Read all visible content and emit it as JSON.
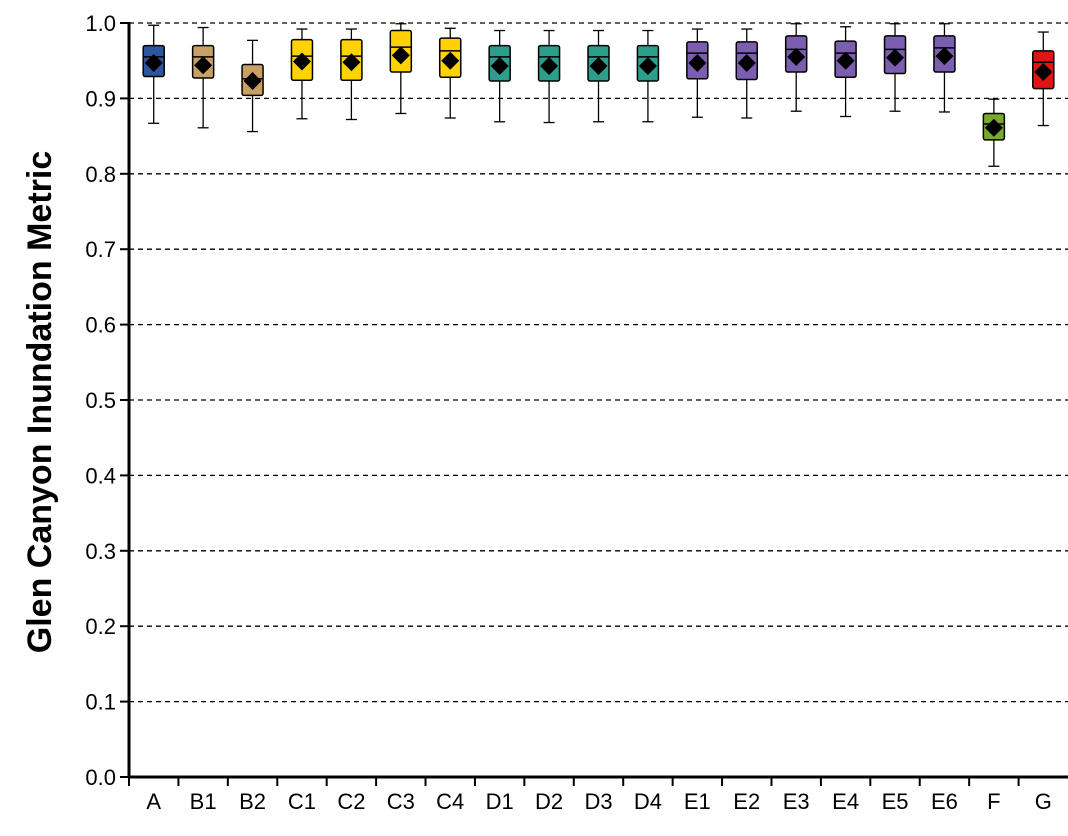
{
  "chart_data": {
    "type": "box",
    "title": "",
    "xlabel": "",
    "ylabel": "Glen Canyon Inundation Metric",
    "ylim": [
      0,
      1
    ],
    "yticks": [
      "0.0",
      "0.1",
      "0.2",
      "0.3",
      "0.4",
      "0.5",
      "0.6",
      "0.7",
      "0.8",
      "0.9",
      "1.0"
    ],
    "grid": "horizontal dashed",
    "categories": [
      "A",
      "B1",
      "B2",
      "C1",
      "C2",
      "C3",
      "C4",
      "D1",
      "D2",
      "D3",
      "D4",
      "E1",
      "E2",
      "E3",
      "E4",
      "E5",
      "E6",
      "F",
      "G"
    ],
    "colors": [
      "#2E55A0",
      "#C8A064",
      "#C8A064",
      "#FFD200",
      "#FFD200",
      "#FFD200",
      "#FFD200",
      "#2E9E8C",
      "#2E9E8C",
      "#2E9E8C",
      "#2E9E8C",
      "#7B5EAF",
      "#7B5EAF",
      "#7B5EAF",
      "#7B5EAF",
      "#7B5EAF",
      "#7B5EAF",
      "#78A82E",
      "#E01414"
    ],
    "boxes": [
      {
        "min": 0.867,
        "q1": 0.929,
        "median": 0.955,
        "q3": 0.97,
        "max": 0.997,
        "mean": 0.947
      },
      {
        "min": 0.861,
        "q1": 0.927,
        "median": 0.955,
        "q3": 0.97,
        "max": 0.994,
        "mean": 0.944
      },
      {
        "min": 0.856,
        "q1": 0.904,
        "median": 0.926,
        "q3": 0.945,
        "max": 0.977,
        "mean": 0.923
      },
      {
        "min": 0.873,
        "q1": 0.924,
        "median": 0.956,
        "q3": 0.978,
        "max": 0.992,
        "mean": 0.949
      },
      {
        "min": 0.872,
        "q1": 0.924,
        "median": 0.956,
        "q3": 0.978,
        "max": 0.992,
        "mean": 0.948
      },
      {
        "min": 0.88,
        "q1": 0.935,
        "median": 0.968,
        "q3": 0.99,
        "max": 0.999,
        "mean": 0.957
      },
      {
        "min": 0.874,
        "q1": 0.928,
        "median": 0.963,
        "q3": 0.98,
        "max": 0.993,
        "mean": 0.95
      },
      {
        "min": 0.869,
        "q1": 0.923,
        "median": 0.955,
        "q3": 0.97,
        "max": 0.99,
        "mean": 0.943
      },
      {
        "min": 0.868,
        "q1": 0.923,
        "median": 0.955,
        "q3": 0.97,
        "max": 0.99,
        "mean": 0.943
      },
      {
        "min": 0.869,
        "q1": 0.923,
        "median": 0.955,
        "q3": 0.97,
        "max": 0.99,
        "mean": 0.943
      },
      {
        "min": 0.869,
        "q1": 0.923,
        "median": 0.955,
        "q3": 0.97,
        "max": 0.99,
        "mean": 0.943
      },
      {
        "min": 0.875,
        "q1": 0.926,
        "median": 0.96,
        "q3": 0.975,
        "max": 0.992,
        "mean": 0.947
      },
      {
        "min": 0.874,
        "q1": 0.925,
        "median": 0.96,
        "q3": 0.975,
        "max": 0.992,
        "mean": 0.947
      },
      {
        "min": 0.883,
        "q1": 0.935,
        "median": 0.965,
        "q3": 0.983,
        "max": 0.999,
        "mean": 0.955
      },
      {
        "min": 0.876,
        "q1": 0.928,
        "median": 0.96,
        "q3": 0.976,
        "max": 0.995,
        "mean": 0.95
      },
      {
        "min": 0.883,
        "q1": 0.933,
        "median": 0.965,
        "q3": 0.983,
        "max": 0.999,
        "mean": 0.954
      },
      {
        "min": 0.882,
        "q1": 0.935,
        "median": 0.967,
        "q3": 0.983,
        "max": 0.999,
        "mean": 0.956
      },
      {
        "min": 0.81,
        "q1": 0.845,
        "median": 0.866,
        "q3": 0.88,
        "max": 0.899,
        "mean": 0.861
      },
      {
        "min": 0.864,
        "q1": 0.913,
        "median": 0.948,
        "q3": 0.963,
        "max": 0.988,
        "mean": 0.935
      }
    ]
  }
}
